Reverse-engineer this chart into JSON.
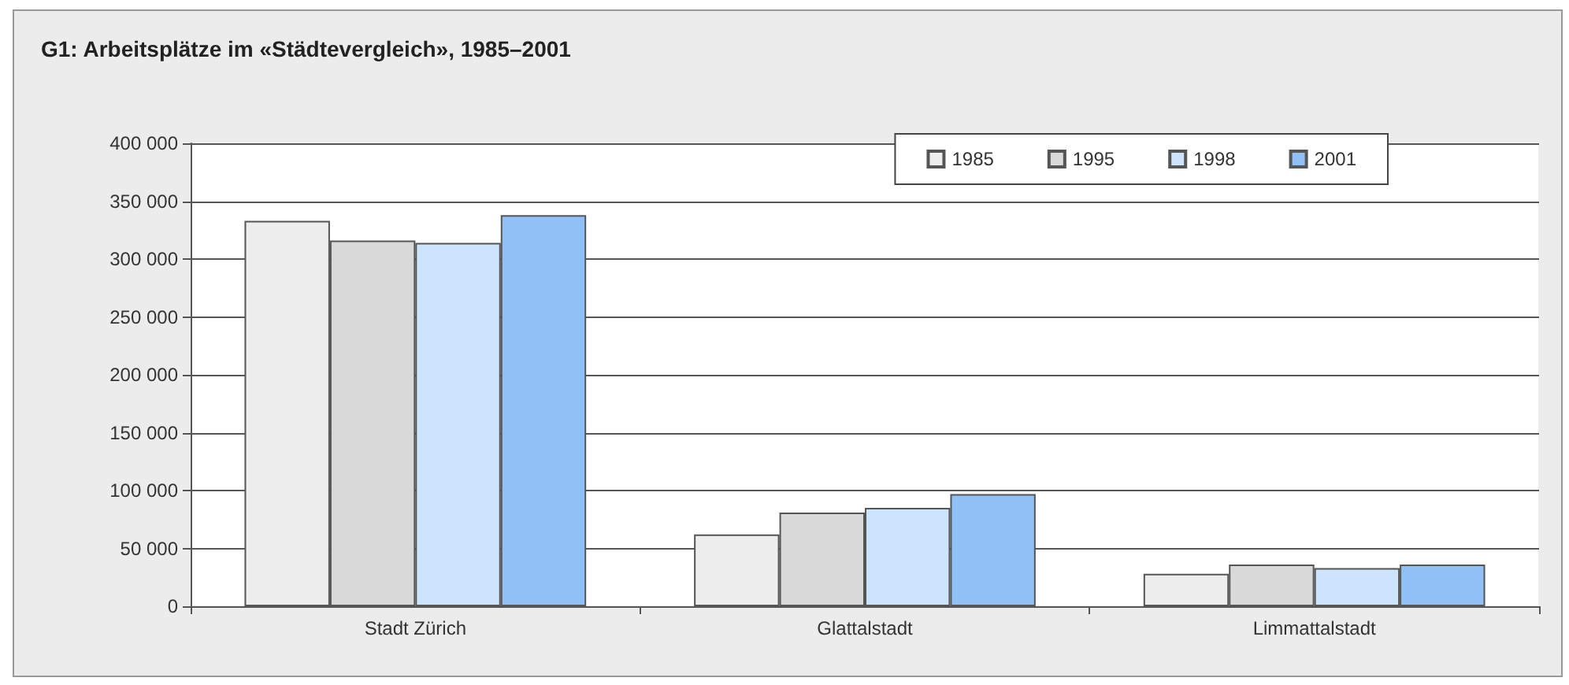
{
  "chart_data": {
    "type": "bar",
    "title": "G1: Arbeitsplätze im «Städtevergleich», 1985–2001",
    "categories": [
      "Stadt Zürich",
      "Glattalstadt",
      "Limmattalstadt"
    ],
    "series": [
      {
        "name": "1985",
        "color": "#ededed",
        "values": [
          333000,
          62000,
          28000
        ]
      },
      {
        "name": "1995",
        "color": "#d9d9d9",
        "values": [
          316000,
          81000,
          36000
        ]
      },
      {
        "name": "1998",
        "color": "#cce4fc",
        "values": [
          314000,
          85000,
          33000
        ]
      },
      {
        "name": "2001",
        "color": "#8fc1f7",
        "values": [
          338000,
          97000,
          36000
        ]
      }
    ],
    "ylim": [
      0,
      400000
    ],
    "yticks": [
      0,
      {
        "value": 50000,
        "label": "50 000"
      },
      {
        "value": 100000,
        "label": "100 000"
      },
      {
        "value": 150000,
        "label": "150 000"
      },
      {
        "value": 200000,
        "label": "200 000"
      },
      {
        "value": 250000,
        "label": "250 000"
      },
      {
        "value": 300000,
        "label": "300 000"
      },
      {
        "value": 350000,
        "label": "350 000"
      },
      {
        "value": 400000,
        "label": "400 000"
      }
    ],
    "grid": "y",
    "legend": "top right"
  }
}
